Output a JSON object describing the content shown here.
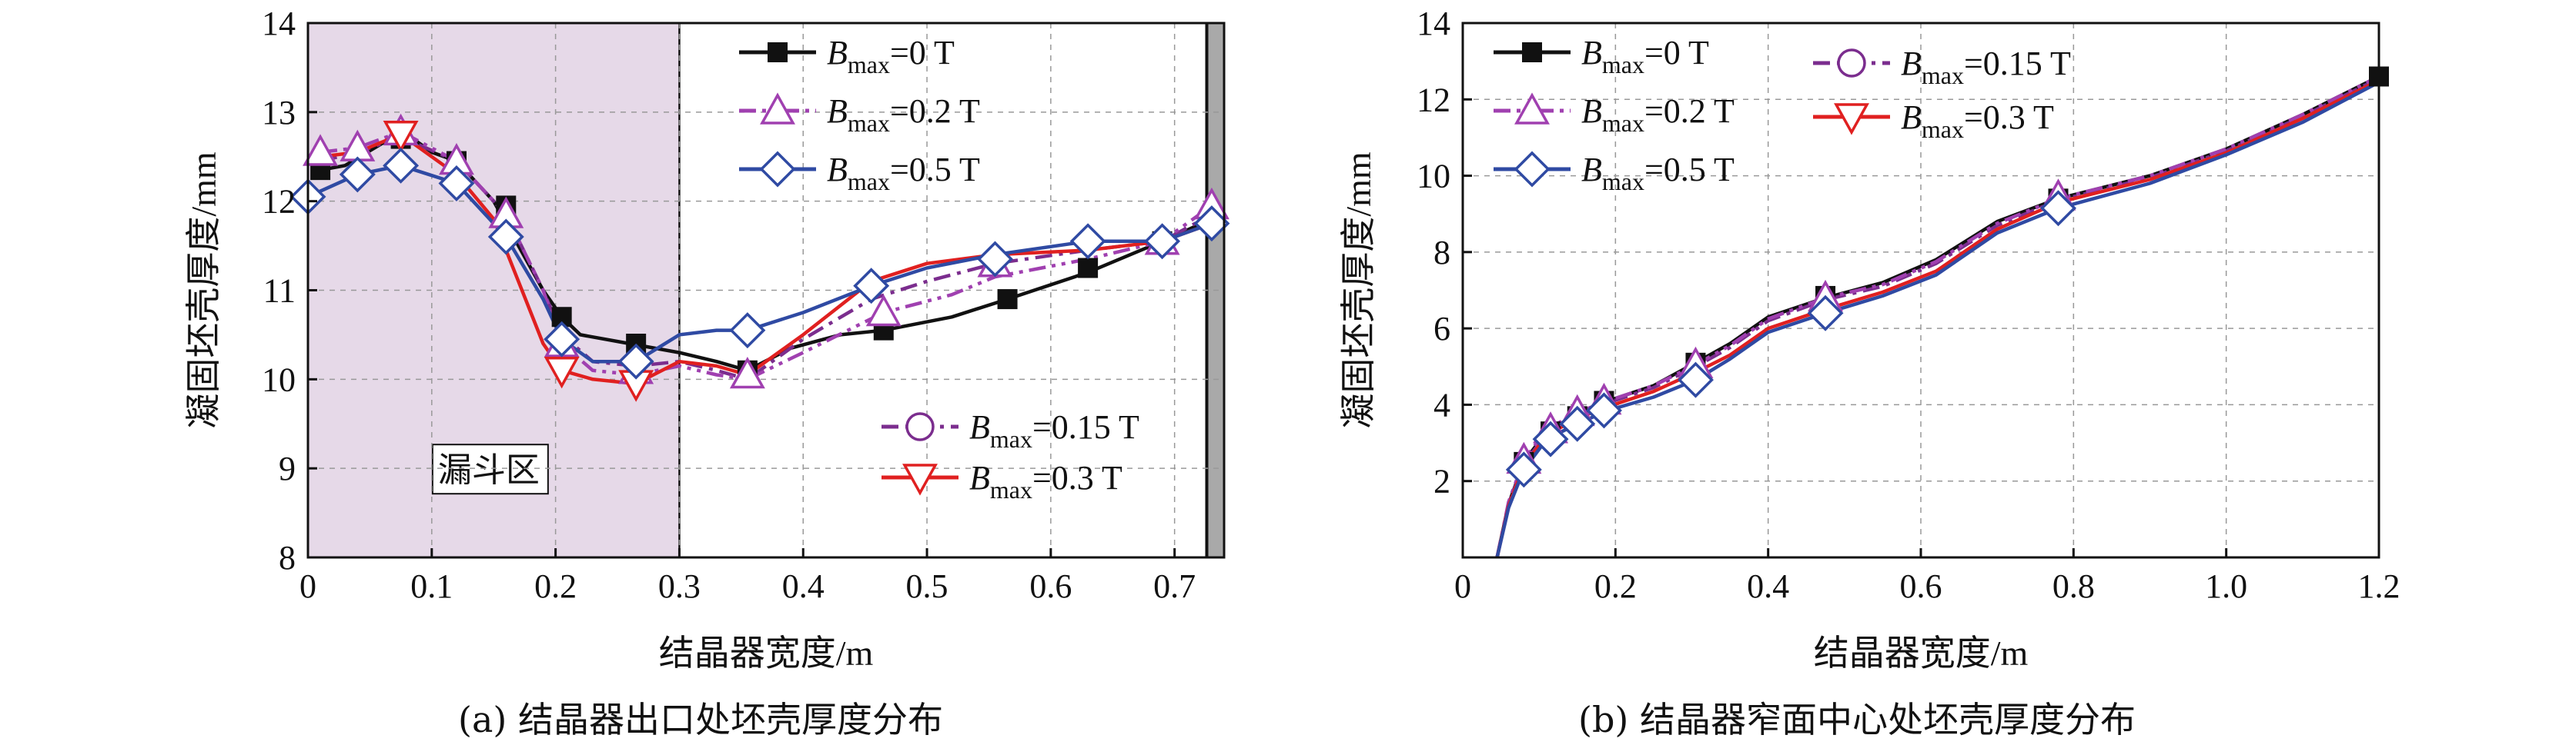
{
  "figure": {
    "caption_a": "(a) 结晶器出口处坯壳厚度分布",
    "caption_b": "(b) 结晶器窄面中心处坯壳厚度分布"
  },
  "chart_data": [
    {
      "id": "a",
      "type": "line",
      "xlabel": "结晶器宽度/m",
      "ylabel": "凝固坯壳厚度/mm",
      "xlim": [
        0,
        0.74
      ],
      "ylim": [
        8,
        14
      ],
      "xticks": [
        0,
        0.1,
        0.2,
        0.3,
        0.4,
        0.5,
        0.6,
        0.7
      ],
      "xtick_labels": [
        "0",
        "0.1",
        "0.2",
        "0.3",
        "0.4",
        "0.5",
        "0.6",
        "0.7"
      ],
      "yticks": [
        8,
        9,
        10,
        11,
        12,
        13,
        14
      ],
      "ytick_labels": [
        "8",
        "9",
        "10",
        "11",
        "12",
        "13",
        "14"
      ],
      "grid": true,
      "shaded_region": {
        "x": [
          0,
          0.3
        ],
        "label": "漏斗区",
        "color": "#e6d9e8"
      },
      "edge_region": {
        "x": [
          0.726,
          0.74
        ],
        "color": "#a9a9a9"
      },
      "legend_groups": [
        {
          "placement": "top-right",
          "entries": [
            0,
            2,
            4
          ]
        },
        {
          "placement": "bottom-right",
          "entries": [
            1,
            3
          ]
        }
      ],
      "series": [
        {
          "name": "B_max=0 T",
          "label_var": "B",
          "label_sub": "max",
          "label_rest": "=0 T",
          "color": "#111111",
          "dash": "solid",
          "marker": "square",
          "x": [
            0.01,
            0.03,
            0.06,
            0.08,
            0.1,
            0.12,
            0.15,
            0.17,
            0.19,
            0.205,
            0.22,
            0.26,
            0.3,
            0.33,
            0.355,
            0.39,
            0.43,
            0.465,
            0.52,
            0.565,
            0.63,
            0.69,
            0.73
          ],
          "y": [
            12.35,
            12.4,
            12.65,
            12.75,
            12.55,
            12.45,
            12.0,
            11.5,
            11.0,
            10.7,
            10.5,
            10.4,
            10.3,
            10.2,
            10.1,
            10.35,
            10.5,
            10.55,
            10.7,
            10.9,
            11.2,
            11.55,
            11.8
          ],
          "marker_x": [
            0.01,
            0.075,
            0.12,
            0.16,
            0.205,
            0.265,
            0.355,
            0.465,
            0.565,
            0.63,
            0.69
          ],
          "marker_y": [
            12.35,
            12.7,
            12.45,
            11.95,
            10.7,
            10.4,
            10.1,
            10.55,
            10.9,
            11.25,
            11.55
          ]
        },
        {
          "name": "B_max=0.15 T",
          "label_var": "B",
          "label_sub": "max",
          "label_rest": "=0.15 T",
          "color": "#7b2d8e",
          "dash": "dashdot",
          "marker": "circle",
          "x": [
            0.01,
            0.04,
            0.075,
            0.12,
            0.16,
            0.19,
            0.205,
            0.23,
            0.265,
            0.3,
            0.33,
            0.355,
            0.4,
            0.455,
            0.5,
            0.555,
            0.63,
            0.69,
            0.73
          ],
          "y": [
            12.45,
            12.55,
            12.72,
            12.45,
            11.85,
            11.0,
            10.5,
            10.2,
            10.15,
            10.2,
            10.1,
            10.0,
            10.45,
            10.9,
            11.1,
            11.3,
            11.45,
            11.55,
            11.85
          ],
          "marker_x": [],
          "marker_y": []
        },
        {
          "name": "B_max=0.2 T",
          "label_var": "B",
          "label_sub": "max",
          "label_rest": "=0.2 T",
          "color": "#a040b0",
          "dash": "dashdotdot",
          "marker": "triangle-up",
          "x": [
            0.01,
            0.04,
            0.075,
            0.12,
            0.16,
            0.19,
            0.205,
            0.23,
            0.265,
            0.3,
            0.33,
            0.355,
            0.4,
            0.465,
            0.52,
            0.555,
            0.63,
            0.69,
            0.73
          ],
          "y": [
            12.55,
            12.6,
            12.78,
            12.45,
            11.85,
            11.0,
            10.4,
            10.1,
            10.05,
            10.15,
            10.05,
            10.0,
            10.3,
            10.75,
            10.95,
            11.15,
            11.35,
            11.55,
            11.95
          ],
          "marker_x": [
            0.01,
            0.04,
            0.075,
            0.12,
            0.16,
            0.205,
            0.265,
            0.355,
            0.465,
            0.555,
            0.69,
            0.73
          ],
          "marker_y": [
            12.55,
            12.6,
            12.78,
            12.45,
            11.85,
            10.4,
            10.1,
            10.05,
            10.75,
            11.3,
            11.55,
            11.95
          ]
        },
        {
          "name": "B_max=0.3 T",
          "label_var": "B",
          "label_sub": "max",
          "label_rest": "=0.3 T",
          "color": "#e02020",
          "dash": "solid",
          "marker": "triangle-down",
          "x": [
            0.01,
            0.04,
            0.075,
            0.1,
            0.12,
            0.15,
            0.17,
            0.19,
            0.205,
            0.23,
            0.265,
            0.3,
            0.33,
            0.355,
            0.4,
            0.455,
            0.5,
            0.555,
            0.63,
            0.69,
            0.73
          ],
          "y": [
            12.5,
            12.55,
            12.75,
            12.5,
            12.3,
            11.8,
            11.1,
            10.4,
            10.1,
            10.0,
            9.95,
            10.2,
            10.15,
            10.05,
            10.5,
            11.1,
            11.3,
            11.4,
            11.45,
            11.55,
            11.75
          ],
          "marker_x": [
            0.075,
            0.205,
            0.265
          ],
          "marker_y": [
            12.75,
            10.1,
            9.95
          ]
        },
        {
          "name": "B_max=0.5 T",
          "label_var": "B",
          "label_sub": "max",
          "label_rest": "=0.5 T",
          "color": "#2f4aa3",
          "dash": "solid",
          "marker": "diamond",
          "x": [
            0.0,
            0.04,
            0.075,
            0.12,
            0.16,
            0.19,
            0.205,
            0.23,
            0.265,
            0.3,
            0.33,
            0.355,
            0.4,
            0.455,
            0.5,
            0.555,
            0.63,
            0.69,
            0.73
          ],
          "y": [
            12.05,
            12.3,
            12.4,
            12.2,
            11.6,
            10.9,
            10.45,
            10.2,
            10.2,
            10.5,
            10.55,
            10.55,
            10.75,
            11.05,
            11.25,
            11.4,
            11.55,
            11.55,
            11.75
          ],
          "marker_x": [
            0.0,
            0.04,
            0.075,
            0.12,
            0.16,
            0.205,
            0.265,
            0.355,
            0.455,
            0.555,
            0.63,
            0.69,
            0.73
          ],
          "marker_y": [
            12.05,
            12.3,
            12.4,
            12.2,
            11.6,
            10.45,
            10.2,
            10.55,
            11.05,
            11.35,
            11.55,
            11.55,
            11.75
          ]
        }
      ]
    },
    {
      "id": "b",
      "type": "line",
      "xlabel": "结晶器宽度/m",
      "ylabel": "凝固坯壳厚度/mm",
      "xlim": [
        0,
        1.2
      ],
      "ylim": [
        0,
        14
      ],
      "xticks": [
        0,
        0.2,
        0.4,
        0.6,
        0.8,
        1.0,
        1.2
      ],
      "xtick_labels": [
        "0",
        "0.2",
        "0.4",
        "0.6",
        "0.8",
        "1.0",
        "1.2"
      ],
      "yticks": [
        2,
        4,
        6,
        8,
        10,
        12,
        14
      ],
      "ytick_labels": [
        "2",
        "4",
        "6",
        "8",
        "10",
        "12",
        "14"
      ],
      "grid": true,
      "legend_groups": [
        {
          "placement": "top-left",
          "entries": [
            0,
            2,
            4
          ]
        },
        {
          "placement": "top-center",
          "entries": [
            1,
            3
          ]
        }
      ],
      "series": [
        {
          "name": "B_max=0 T",
          "label_var": "B",
          "label_sub": "max",
          "label_rest": "=0 T",
          "color": "#111111",
          "dash": "solid",
          "marker": "square",
          "x": [
            0.045,
            0.06,
            0.08,
            0.11,
            0.15,
            0.19,
            0.25,
            0.305,
            0.35,
            0.4,
            0.475,
            0.55,
            0.62,
            0.7,
            0.78,
            0.9,
            1.0,
            1.1,
            1.2
          ],
          "y": [
            0.0,
            1.4,
            2.5,
            3.3,
            3.75,
            4.1,
            4.5,
            5.1,
            5.6,
            6.3,
            6.8,
            7.2,
            7.8,
            8.8,
            9.4,
            10.0,
            10.7,
            11.6,
            12.6
          ],
          "marker_x": [
            0.08,
            0.115,
            0.15,
            0.185,
            0.305,
            0.475,
            0.78,
            1.2
          ],
          "marker_y": [
            2.5,
            3.3,
            3.7,
            4.1,
            5.1,
            6.85,
            9.4,
            12.6
          ]
        },
        {
          "name": "B_max=0.15 T",
          "label_var": "B",
          "label_sub": "max",
          "label_rest": "=0.15 T",
          "color": "#7b2d8e",
          "dash": "dashdot",
          "marker": "circle",
          "x": [
            0.045,
            0.06,
            0.08,
            0.11,
            0.15,
            0.19,
            0.25,
            0.305,
            0.35,
            0.4,
            0.475,
            0.55,
            0.62,
            0.7,
            0.78,
            0.9,
            1.0,
            1.1,
            1.2
          ],
          "y": [
            0.0,
            1.4,
            2.45,
            3.25,
            3.7,
            4.05,
            4.45,
            5.0,
            5.5,
            6.2,
            6.75,
            7.1,
            7.7,
            8.7,
            9.35,
            9.95,
            10.65,
            11.55,
            12.55
          ],
          "marker_x": [],
          "marker_y": []
        },
        {
          "name": "B_max=0.2 T",
          "label_var": "B",
          "label_sub": "max",
          "label_rest": "=0.2 T",
          "color": "#a040b0",
          "dash": "dashdotdot",
          "marker": "triangle-up",
          "x": [
            0.045,
            0.06,
            0.08,
            0.11,
            0.15,
            0.19,
            0.25,
            0.305,
            0.35,
            0.4,
            0.475,
            0.55,
            0.62,
            0.7,
            0.78,
            0.9,
            1.0,
            1.1,
            1.2
          ],
          "y": [
            0.0,
            1.45,
            2.55,
            3.35,
            3.8,
            4.1,
            4.5,
            5.05,
            5.55,
            6.25,
            6.8,
            7.15,
            7.75,
            8.75,
            9.4,
            10.0,
            10.7,
            11.6,
            12.6
          ],
          "marker_x": [
            0.08,
            0.115,
            0.15,
            0.185,
            0.305,
            0.475,
            0.78
          ],
          "marker_y": [
            2.55,
            3.35,
            3.8,
            4.1,
            5.05,
            6.8,
            9.45
          ]
        },
        {
          "name": "B_max=0.3 T",
          "label_var": "B",
          "label_sub": "max",
          "label_rest": "=0.3 T",
          "color": "#e02020",
          "dash": "solid",
          "marker": "triangle-down",
          "x": [
            0.045,
            0.06,
            0.08,
            0.11,
            0.15,
            0.19,
            0.25,
            0.305,
            0.35,
            0.4,
            0.475,
            0.55,
            0.62,
            0.7,
            0.78,
            0.9,
            1.0,
            1.1,
            1.2
          ],
          "y": [
            0.0,
            1.35,
            2.4,
            3.2,
            3.65,
            3.95,
            4.35,
            4.85,
            5.3,
            6.0,
            6.5,
            6.95,
            7.5,
            8.6,
            9.3,
            9.9,
            10.6,
            11.5,
            12.5
          ],
          "marker_x": [],
          "marker_y": []
        },
        {
          "name": "B_max=0.5 T",
          "label_var": "B",
          "label_sub": "max",
          "label_rest": "=0.5 T",
          "color": "#2f4aa3",
          "dash": "solid",
          "marker": "diamond",
          "x": [
            0.045,
            0.06,
            0.08,
            0.11,
            0.15,
            0.19,
            0.25,
            0.305,
            0.35,
            0.4,
            0.475,
            0.55,
            0.62,
            0.7,
            0.78,
            0.9,
            1.0,
            1.1,
            1.2
          ],
          "y": [
            0.0,
            1.3,
            2.3,
            3.1,
            3.5,
            3.85,
            4.2,
            4.65,
            5.2,
            5.9,
            6.4,
            6.85,
            7.4,
            8.5,
            9.15,
            9.8,
            10.55,
            11.4,
            12.45
          ],
          "marker_x": [
            0.08,
            0.115,
            0.15,
            0.185,
            0.305,
            0.475,
            0.78
          ],
          "marker_y": [
            2.3,
            3.1,
            3.5,
            3.85,
            4.65,
            6.4,
            9.15
          ]
        }
      ]
    }
  ]
}
